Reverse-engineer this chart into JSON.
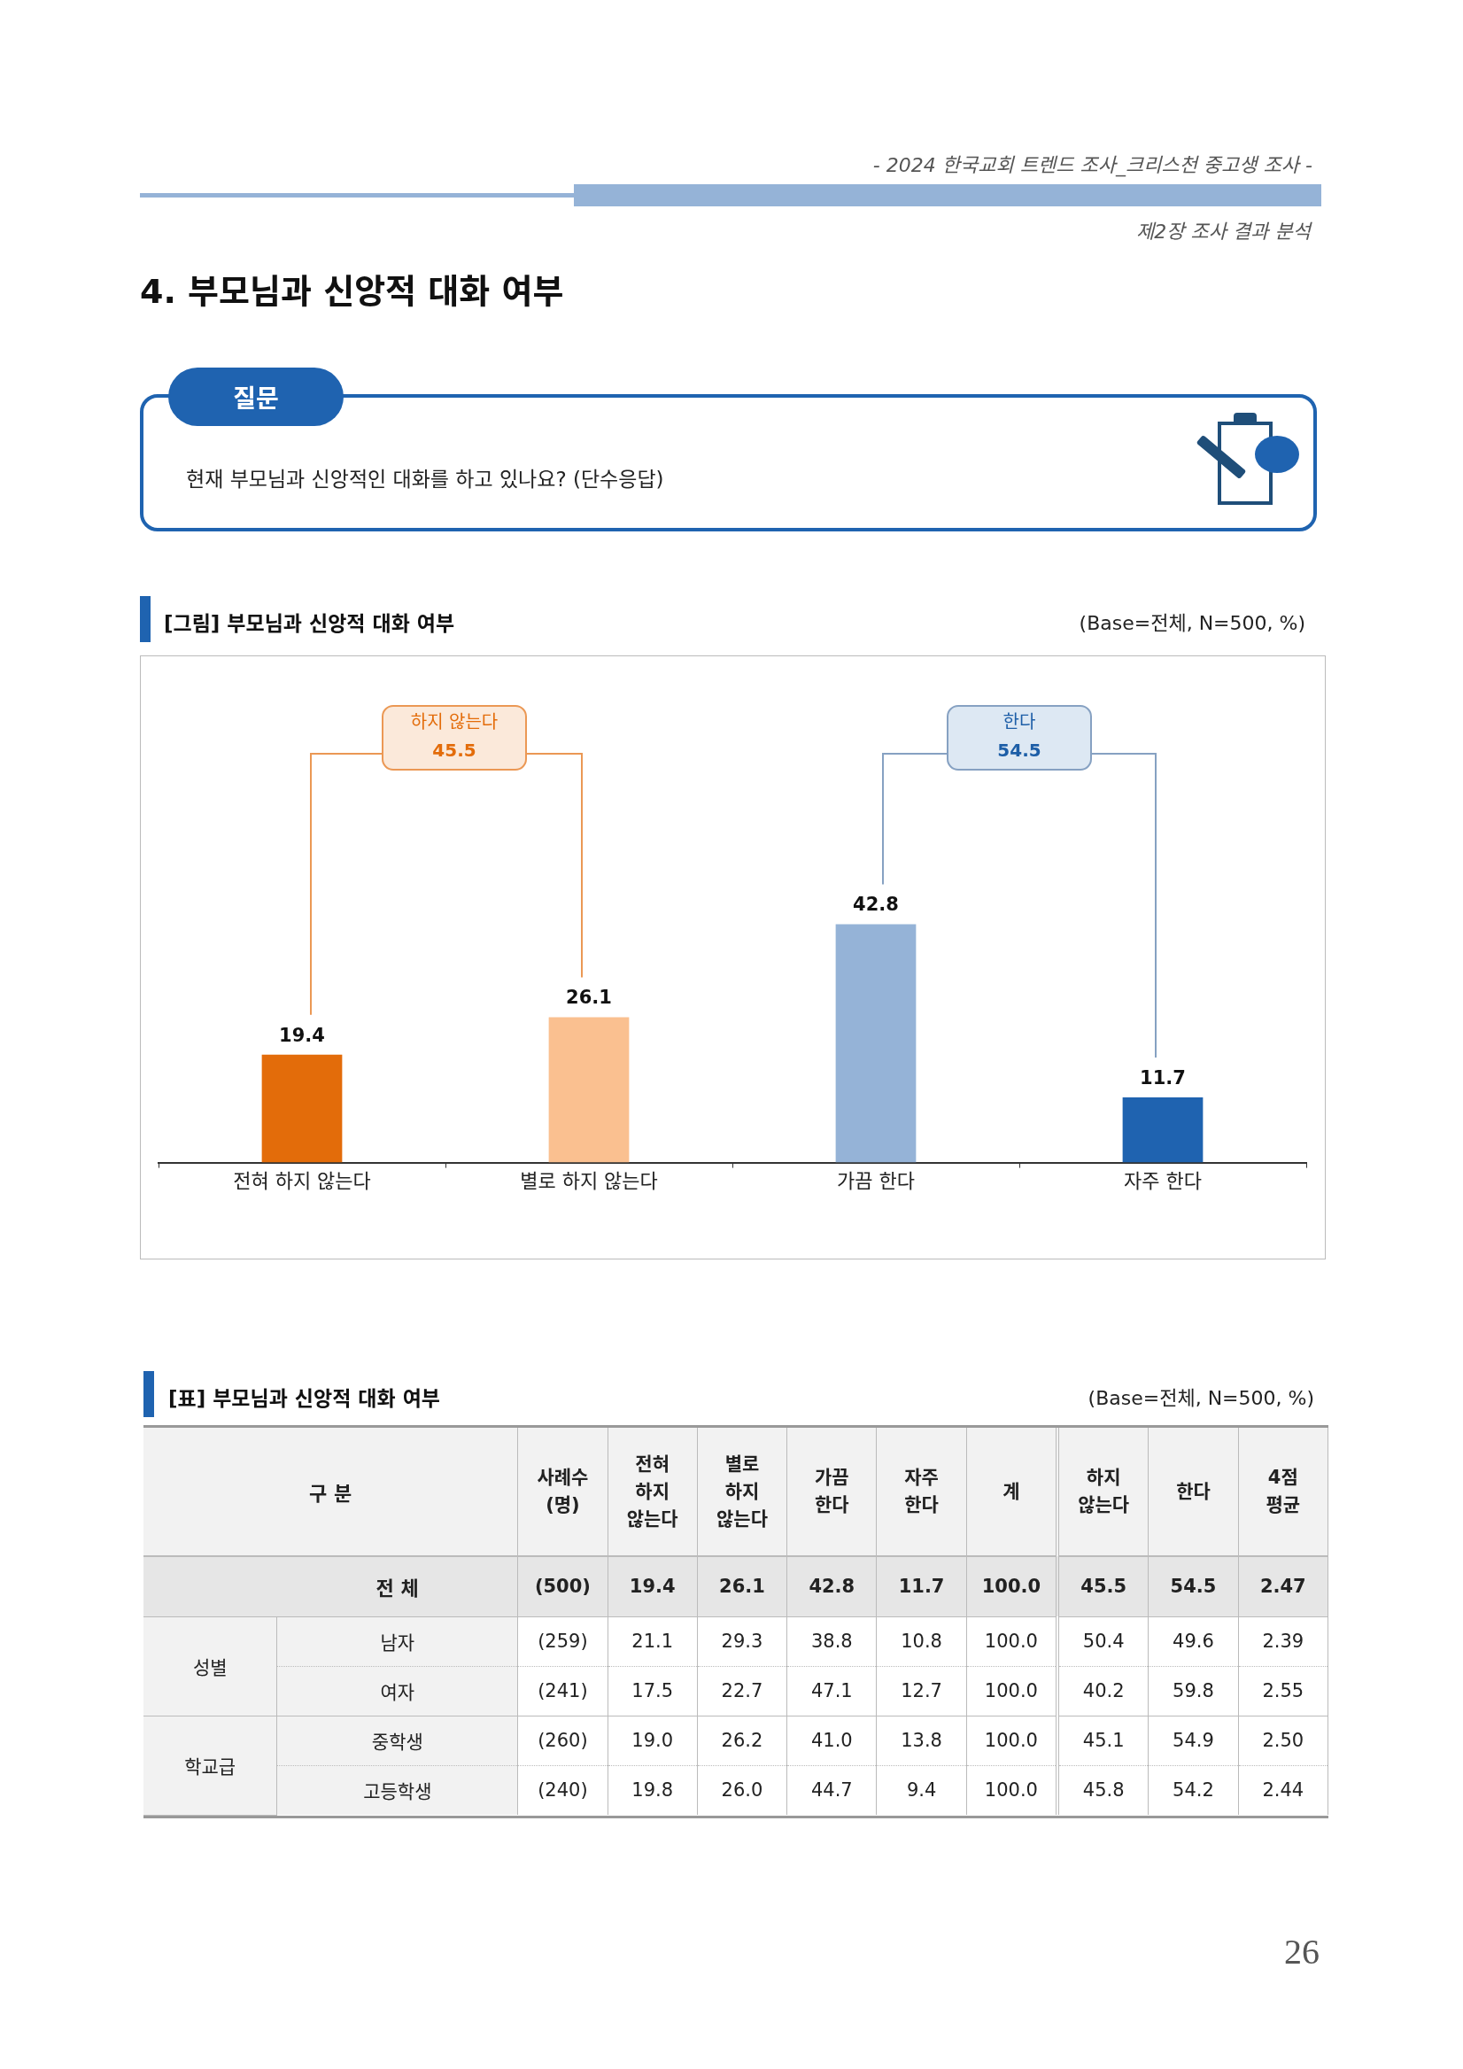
{
  "chart_data": [
    {
      "type": "bar",
      "title": "[그림] 부모님과 신앙적 대화 여부",
      "subtitle": "(Base=전체, N=500, %)",
      "categories": [
        "전혀 하지 않는다",
        "별로 하지 않는다",
        "가끔 한다",
        "자주 한다"
      ],
      "values": [
        19.4,
        26.1,
        42.8,
        11.7
      ],
      "colors": [
        "#e36c0a",
        "#fac090",
        "#95b3d7",
        "#1f63b0"
      ],
      "data_labels": true,
      "annotations": [
        "하지 않는다\n45.5",
        "한다\n54.5",
        "- 2024 한국교회 트렌드 조사_크리스천 중고생 조사 -",
        "제2장 조사 결과 분석",
        "4. 부모님과 신앙적 대화 여부",
        "질문",
        "현재 부모님과 신앙적인 대화를 하고 있나요? (단수응답)",
        "26"
      ]
    },
    {
      "type": "heatmap",
      "title": "[표] 부모님과 신앙적 대화 여부",
      "subtitle": "(Base=전체, N=500, %)",
      "ylabel": "구 분",
      "categories": [
        "사례수 (명)",
        "전혀 하지 않는다",
        "별로 하지 않는다",
        "가끔 한다",
        "자주 한다",
        "계",
        "하지 않는다",
        "한다",
        "4점 평균"
      ],
      "y_categories": [
        "전 체",
        "남자",
        "여자",
        "중학생",
        "고등학생"
      ],
      "cells": [
        [
          500,
          19.4,
          26.1,
          42.8,
          11.7,
          100.0,
          45.5,
          54.5,
          2.47
        ],
        [
          259,
          21.1,
          29.3,
          38.8,
          10.8,
          100.0,
          50.4,
          49.6,
          2.39
        ],
        [
          241,
          17.5,
          22.7,
          47.1,
          12.7,
          100.0,
          40.2,
          59.8,
          2.55
        ],
        [
          260,
          19.0,
          26.2,
          41.0,
          13.8,
          100.0,
          45.1,
          54.9,
          2.5
        ],
        [
          240,
          19.8,
          26.0,
          44.7,
          9.4,
          100.0,
          45.8,
          54.2,
          2.44
        ]
      ],
      "cell_labels": [
        [
          "(500)",
          "19.4",
          "26.1",
          "42.8",
          "11.7",
          "100.0",
          "45.5",
          "54.5",
          "2.47"
        ],
        [
          "(259)",
          "21.1",
          "29.3",
          "38.8",
          "10.8",
          "100.0",
          "50.4",
          "49.6",
          "2.39"
        ],
        [
          "(241)",
          "17.5",
          "22.7",
          "47.1",
          "12.7",
          "100.0",
          "40.2",
          "59.8",
          "2.55"
        ],
        [
          "(260)",
          "19.0",
          "26.2",
          "41.0",
          "13.8",
          "100.0",
          "45.1",
          "54.9",
          "2.50"
        ],
        [
          "(240)",
          "19.8",
          "26.0",
          "44.7",
          "9.4",
          "100.0",
          "45.8",
          "54.2",
          "2.44"
        ]
      ],
      "annotations": [
        "성별",
        "학교급"
      ]
    }
  ]
}
